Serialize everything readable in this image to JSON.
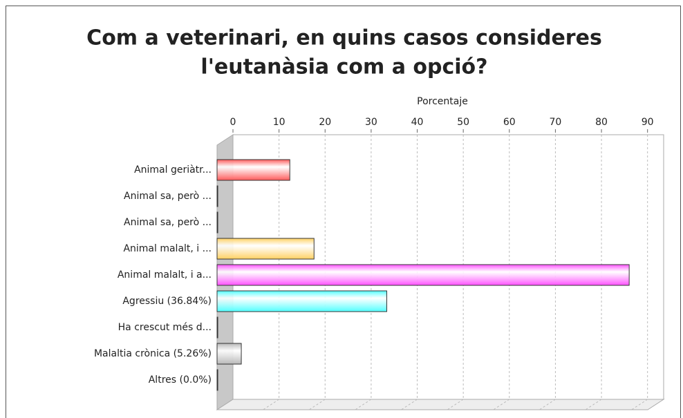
{
  "chart_data": {
    "type": "bar",
    "title": [
      "Com a veterinari, en quins casos consideres",
      "l'eutanàsia com a opció?"
    ],
    "x_label": "Porcentaje",
    "categories": [
      "Animal geriàtr...",
      "Animal sa, però ...",
      "Animal sa, però ...",
      "Animal malalt, i ...",
      "Animal malalt, i a...",
      "Agressiu (36.84%)",
      "Ha crescut més d...",
      "Malaltia crònica (5.26%)",
      "Altres (0.0%)"
    ],
    "values": [
      15.79,
      0,
      0,
      21.05,
      89.47,
      36.84,
      0,
      5.26,
      0
    ],
    "colors": [
      "#ff5a5a",
      "#ff5a5a",
      "#ffd060",
      "#ffd060",
      "#ff50ff",
      "#50ffff",
      "#909090",
      "#b8b8b8",
      "#909090"
    ],
    "xlim": [
      0,
      93.5
    ],
    "xticks": [
      0,
      10,
      20,
      30,
      40,
      50,
      60,
      70,
      80,
      90
    ],
    "grid": true
  }
}
